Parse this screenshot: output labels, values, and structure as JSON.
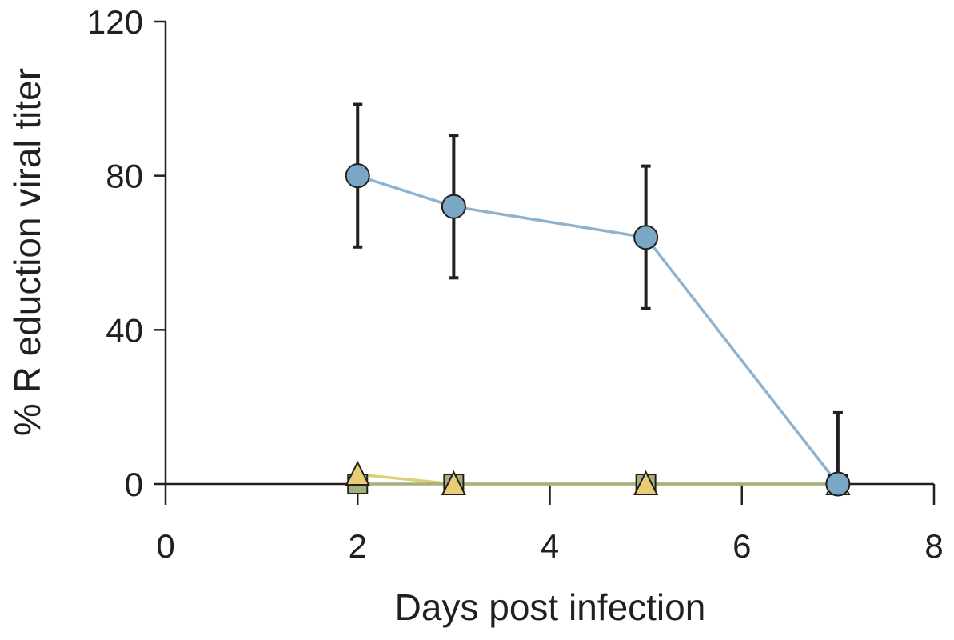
{
  "chart_data": {
    "type": "line",
    "xlabel": "Days post infection",
    "ylabel": "% R eduction viral titer",
    "xlim": [
      0,
      8
    ],
    "ylim": [
      0,
      120
    ],
    "x_ticks": [
      "0",
      "2",
      "4",
      "6",
      "8"
    ],
    "y_ticks": [
      "0",
      "40",
      "80",
      "120"
    ],
    "grid": false,
    "legend": "none",
    "series": [
      {
        "marker": "circle",
        "color": "#7ba7c7",
        "line_color": "#8fb3cf",
        "x": [
          2,
          3,
          5,
          7
        ],
        "y": [
          80,
          72,
          64,
          0
        ],
        "error": [
          18.5,
          18.5,
          18.5,
          18.5
        ]
      },
      {
        "marker": "square",
        "color": "#a3b27a",
        "line_color": "#a3b27a",
        "x": [
          2,
          3,
          5,
          7
        ],
        "y": [
          0,
          0,
          0,
          0
        ]
      },
      {
        "marker": "triangle",
        "color": "#e8cd75",
        "line_color": "#e2cc7a",
        "x": [
          2,
          3,
          5,
          7
        ],
        "y": [
          2.5,
          0,
          0,
          0
        ]
      }
    ]
  }
}
